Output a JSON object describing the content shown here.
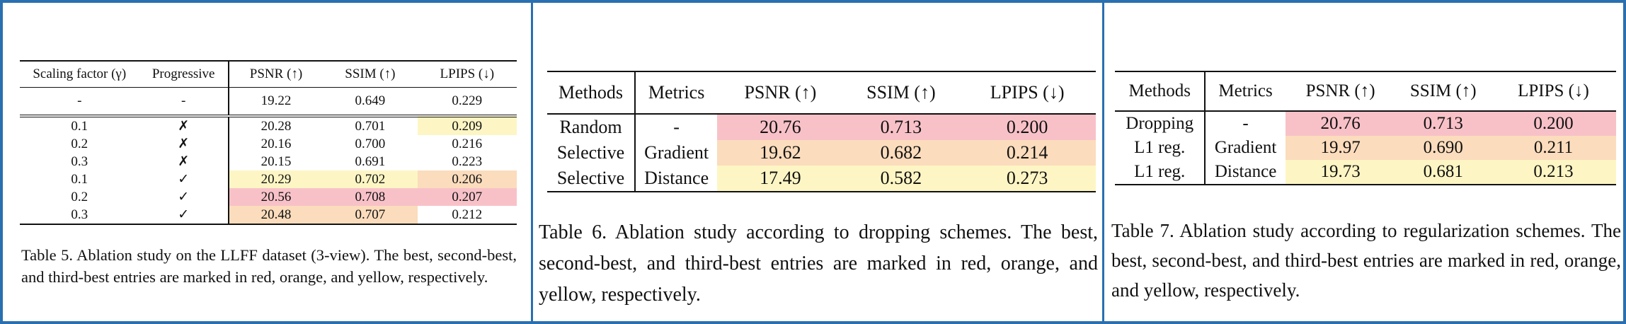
{
  "table5": {
    "header": [
      "Scaling factor (γ)",
      "Progressive",
      "PSNR (↑)",
      "SSIM (↑)",
      "LPIPS (↓)"
    ],
    "rows": [
      [
        "-",
        "-",
        "19.22",
        "0.649",
        "0.229"
      ],
      [
        "0.1",
        "✗",
        "20.28",
        "0.701",
        "0.209"
      ],
      [
        "0.2",
        "✗",
        "20.16",
        "0.700",
        "0.216"
      ],
      [
        "0.3",
        "✗",
        "20.15",
        "0.691",
        "0.223"
      ],
      [
        "0.1",
        "✓",
        "20.29",
        "0.702",
        "0.206"
      ],
      [
        "0.2",
        "✓",
        "20.56",
        "0.708",
        "0.207"
      ],
      [
        "0.3",
        "✓",
        "20.48",
        "0.707",
        "0.212"
      ]
    ],
    "caption": "Table 5. Ablation study on the LLFF dataset (3-view). The best, second-best, and third-best entries are marked in red, orange, and yellow, respectively."
  },
  "table6": {
    "header": [
      "Methods",
      "Metrics",
      "PSNR (↑)",
      "SSIM (↑)",
      "LPIPS (↓)"
    ],
    "rows": [
      [
        "Random",
        "-",
        "20.76",
        "0.713",
        "0.200"
      ],
      [
        "Selective",
        "Gradient",
        "19.62",
        "0.682",
        "0.214"
      ],
      [
        "Selective",
        "Distance",
        "17.49",
        "0.582",
        "0.273"
      ]
    ],
    "caption": "Table 6. Ablation study according to dropping schemes. The best, second-best, and third-best entries are marked in red, orange, and yellow, respectively."
  },
  "table7": {
    "header": [
      "Methods",
      "Metrics",
      "PSNR (↑)",
      "SSIM (↑)",
      "LPIPS (↓)"
    ],
    "rows": [
      [
        "Dropping",
        "-",
        "20.76",
        "0.713",
        "0.200"
      ],
      [
        "L1 reg.",
        "Gradient",
        "19.97",
        "0.690",
        "0.211"
      ],
      [
        "L1 reg.",
        "Distance",
        "19.73",
        "0.681",
        "0.213"
      ]
    ],
    "caption": "Table 7. Ablation study according to regularization schemes. The best, second-best, and third-best entries are marked in red, orange, and yellow, respectively."
  }
}
